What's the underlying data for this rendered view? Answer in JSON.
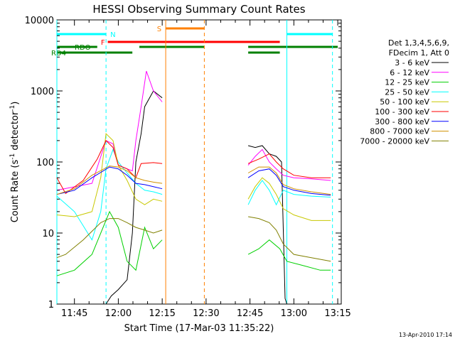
{
  "chart_data": {
    "type": "line",
    "title": "HESSI Observing Summary Count Rates",
    "xlabel": "Start Time (17-Mar-03 11:35:22)",
    "ylabel_main": "Count Rate (s",
    "ylabel_sup1": "-1",
    "ylabel_mid": " detector",
    "ylabel_sup2": "-1",
    "ylabel_end": ")",
    "yscale": "log",
    "ylim": [
      1,
      10000
    ],
    "xlim_minutes": [
      11.65,
      13.27
    ],
    "x_ticks": [
      {
        "t": 11.75,
        "label": "11:45"
      },
      {
        "t": 12.0,
        "label": "12:00"
      },
      {
        "t": 12.25,
        "label": "12:15"
      },
      {
        "t": 12.5,
        "label": "12:30"
      },
      {
        "t": 12.75,
        "label": "12:45"
      },
      {
        "t": 13.0,
        "label": "13:00"
      },
      {
        "t": 13.25,
        "label": "13:15"
      }
    ],
    "y_ticks": [
      {
        "v": 1,
        "label": "1"
      },
      {
        "v": 10,
        "label": "10"
      },
      {
        "v": 100,
        "label": "100"
      },
      {
        "v": 1000,
        "label": "1000"
      },
      {
        "v": 10000,
        "label": "10000"
      }
    ],
    "legend_header": [
      "Det 1,3,4,5,6,9,",
      "FDecim 1, Att 0"
    ],
    "legend_position": "right",
    "footer_date": "13-Apr-2010 17:14",
    "series": [
      {
        "name": "3 - 6 keV",
        "color": "#000000",
        "x": [
          11.65,
          11.9,
          11.93,
          11.96,
          12.0,
          12.05,
          12.08,
          12.1,
          12.13,
          12.15,
          12.2,
          12.25,
          12.27,
          12.74,
          12.78,
          12.82,
          12.86,
          12.9,
          12.93,
          12.95,
          12.96
        ],
        "y": [
          null,
          null,
          1.0,
          1.3,
          1.6,
          2.2,
          10,
          100,
          250,
          600,
          1000,
          800,
          null,
          170,
          160,
          170,
          130,
          120,
          100,
          1.2,
          1.0
        ]
      },
      {
        "name": "6 - 12 keV",
        "color": "#ff00ff",
        "x": [
          11.65,
          11.85,
          11.93,
          11.97,
          12.0,
          12.05,
          12.08,
          12.1,
          12.13,
          12.16,
          12.2,
          12.25,
          12.27,
          12.74,
          12.78,
          12.82,
          12.86,
          12.9,
          12.94,
          13.0,
          13.1,
          13.21
        ],
        "y": [
          40,
          50,
          200,
          180,
          90,
          80,
          75,
          200,
          600,
          1900,
          1000,
          700,
          null,
          90,
          120,
          150,
          100,
          80,
          65,
          60,
          58,
          55
        ]
      },
      {
        "name": "12 - 25 keV",
        "color": "#00d000",
        "x": [
          11.65,
          11.75,
          11.85,
          11.95,
          12.0,
          12.05,
          12.1,
          12.15,
          12.2,
          12.25,
          12.27,
          12.74,
          12.8,
          12.86,
          12.92,
          12.96,
          13.05,
          13.15,
          13.21
        ],
        "y": [
          2.5,
          3,
          5,
          20,
          12,
          4,
          3,
          12,
          6,
          8,
          null,
          5,
          6,
          8,
          6,
          4,
          3.5,
          3,
          3
        ]
      },
      {
        "name": "25 - 50 keV",
        "color": "#00ffff",
        "x": [
          11.65,
          11.75,
          11.85,
          11.9,
          11.93,
          11.97,
          12.0,
          12.05,
          12.1,
          12.15,
          12.2,
          12.25,
          12.27,
          12.74,
          12.78,
          12.82,
          12.86,
          12.9,
          12.94,
          13.0,
          13.1,
          13.21
        ],
        "y": [
          33,
          20,
          8,
          20,
          80,
          150,
          100,
          70,
          50,
          40,
          38,
          35,
          null,
          25,
          40,
          55,
          40,
          25,
          40,
          35,
          33,
          32
        ]
      },
      {
        "name": "50 - 100 keV",
        "color": "#c8c800",
        "x": [
          11.65,
          11.75,
          11.85,
          11.9,
          11.93,
          11.97,
          12.0,
          12.05,
          12.1,
          12.15,
          12.2,
          12.25,
          12.27,
          12.74,
          12.78,
          12.82,
          12.86,
          12.9,
          12.94,
          13.0,
          13.1,
          13.21
        ],
        "y": [
          18,
          17,
          20,
          60,
          250,
          200,
          90,
          55,
          30,
          25,
          30,
          28,
          null,
          30,
          45,
          60,
          50,
          35,
          22,
          18,
          15,
          15
        ]
      },
      {
        "name": "100 - 300 keV",
        "color": "#ff0000",
        "x": [
          11.65,
          11.7,
          11.8,
          11.88,
          11.93,
          11.97,
          12.0,
          12.05,
          12.1,
          12.13,
          12.2,
          12.25,
          12.27,
          12.74,
          12.8,
          12.86,
          12.9,
          12.94,
          13.0,
          13.1,
          13.21
        ],
        "y": [
          60,
          36,
          55,
          110,
          200,
          160,
          90,
          80,
          60,
          95,
          98,
          95,
          null,
          95,
          110,
          130,
          100,
          80,
          65,
          60,
          60
        ]
      },
      {
        "name": "300 - 800 keV",
        "color": "#0000ff",
        "x": [
          11.65,
          11.75,
          11.85,
          11.95,
          12.0,
          12.05,
          12.1,
          12.15,
          12.2,
          12.25,
          12.27,
          12.74,
          12.8,
          12.86,
          12.9,
          12.94,
          13.0,
          13.1,
          13.21
        ],
        "y": [
          35,
          40,
          60,
          85,
          80,
          65,
          50,
          48,
          45,
          42,
          null,
          60,
          75,
          80,
          65,
          45,
          40,
          36,
          34
        ]
      },
      {
        "name": "800 - 7000 keV",
        "color": "#d09000",
        "x": [
          11.65,
          11.75,
          11.85,
          11.95,
          12.0,
          12.05,
          12.1,
          12.15,
          12.2,
          12.25,
          12.27,
          12.74,
          12.8,
          12.86,
          12.9,
          12.94,
          13.0,
          13.1,
          13.21
        ],
        "y": [
          35,
          42,
          65,
          88,
          85,
          75,
          60,
          55,
          52,
          50,
          null,
          70,
          85,
          85,
          70,
          48,
          42,
          38,
          35
        ]
      },
      {
        "name": "7000 - 20000 keV",
        "color": "#808000",
        "x": [
          11.65,
          11.7,
          11.8,
          11.9,
          11.95,
          12.0,
          12.05,
          12.1,
          12.15,
          12.2,
          12.25,
          12.27,
          12.74,
          12.8,
          12.86,
          12.9,
          12.94,
          13.0,
          13.1,
          13.21
        ],
        "y": [
          4.5,
          5,
          8,
          14,
          16,
          16,
          14,
          12,
          11,
          10,
          11,
          null,
          17,
          16,
          14,
          11,
          7,
          5,
          4.5,
          4
        ]
      }
    ],
    "state_bars": [
      {
        "label": "N",
        "color": "#00ffff",
        "segments": [
          [
            11.65,
            11.93
          ],
          [
            12.96,
            13.22
          ]
        ]
      },
      {
        "label": "S",
        "color": "#ff8000",
        "segments": [
          [
            12.27,
            12.49
          ]
        ]
      },
      {
        "label": "F",
        "color": "#ff0000",
        "segments": [
          [
            11.94,
            12.92
          ]
        ]
      },
      {
        "label": "RDO",
        "color": "#008000",
        "segments": [
          [
            11.65,
            11.88
          ],
          [
            12.12,
            12.49
          ],
          [
            12.74,
            13.25
          ]
        ]
      },
      {
        "label": "RD4",
        "color": "#008000",
        "segments": [
          [
            11.65,
            12.08
          ],
          [
            12.74,
            12.92
          ]
        ]
      }
    ],
    "vertical_lines": [
      {
        "t": 11.65,
        "color": "#00ffff",
        "style": "solid"
      },
      {
        "t": 11.93,
        "color": "#00ffff",
        "style": "dashed"
      },
      {
        "t": 12.27,
        "color": "#ff8000",
        "style": "solid"
      },
      {
        "t": 12.49,
        "color": "#ff8000",
        "style": "dashed"
      },
      {
        "t": 12.96,
        "color": "#00ffff",
        "style": "solid"
      },
      {
        "t": 13.22,
        "color": "#00ffff",
        "style": "dashed"
      }
    ]
  }
}
